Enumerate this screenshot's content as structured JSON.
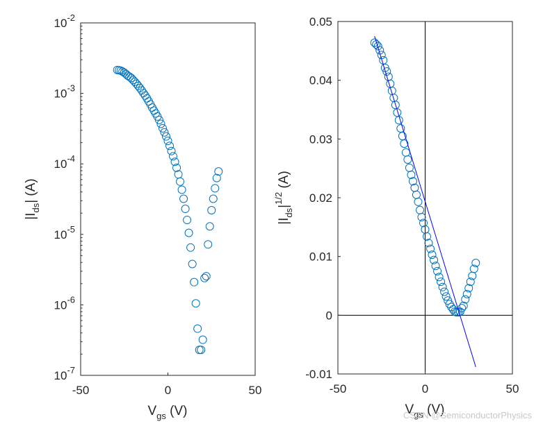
{
  "chart_data": [
    {
      "type": "scatter",
      "xlim": [
        -50,
        50
      ],
      "ylim_exp": [
        -7,
        -2
      ],
      "yscale": "log",
      "x_ticks": [
        "-50",
        "0",
        "50"
      ],
      "y_ticks": [
        {
          "base": "10",
          "exp": "-2"
        },
        {
          "base": "10",
          "exp": "-3"
        },
        {
          "base": "10",
          "exp": "-4"
        },
        {
          "base": "10",
          "exp": "-5"
        },
        {
          "base": "10",
          "exp": "-6"
        },
        {
          "base": "10",
          "exp": "-7"
        }
      ],
      "xlabel": {
        "main": "V",
        "sub": "gs",
        "rest": " (V)"
      },
      "ylabel": {
        "pre": "|I",
        "sub": "ds",
        "rest": "| (A)"
      },
      "marker_color": "#0072BD",
      "series": [
        {
          "x": [
            -29,
            -28,
            -27,
            -26,
            -25,
            -24,
            -23,
            -22,
            -21,
            -20,
            -19,
            -18,
            -17,
            -16,
            -15,
            -14,
            -13,
            -12,
            -11,
            -10,
            -9,
            -8,
            -7,
            -6,
            -5,
            -4,
            -3,
            -2,
            -1,
            0,
            1,
            2,
            3,
            4,
            5,
            6,
            7,
            8,
            9,
            10,
            11,
            12,
            13,
            14,
            15,
            16,
            17,
            18,
            19,
            20,
            21,
            22,
            23,
            24,
            25,
            26,
            27,
            28,
            29
          ],
          "y": [
            0.00215,
            0.00213,
            0.0021,
            0.00204,
            0.00197,
            0.00188,
            0.00178,
            0.00172,
            0.00165,
            0.00155,
            0.00146,
            0.00137,
            0.00128,
            0.00119,
            0.0011,
            0.00101,
            0.00093,
            0.00085,
            0.00077,
            0.0007,
            0.00063,
            0.00057,
            0.00052,
            0.00047,
            0.00042,
            0.00037,
            0.00032,
            0.00028,
            0.000245,
            0.000212,
            0.00018,
            0.000152,
            0.000128,
            0.000107,
            8.8e-05,
            7.1e-05,
            5.6e-05,
            4.3e-05,
            3.2e-05,
            2.3e-05,
            1.6e-05,
            1.05e-05,
            6.5e-06,
            3.8e-06,
            2.1e-06,
            1.05e-06,
            4.6e-07,
            2.3e-07,
            2.3e-07,
            3.2e-07,
            2.4e-06,
            2.55e-06,
            7.2e-06,
            1.3e-05,
            2.2e-05,
            3.2e-05,
            4.5e-05,
            6.3e-05,
            7.8e-05
          ]
        }
      ]
    },
    {
      "type": "scatter",
      "xlim": [
        -50,
        50
      ],
      "ylim": [
        -0.01,
        0.05
      ],
      "x_ticks": [
        "-50",
        "0",
        "50"
      ],
      "y_ticks": [
        "0.05",
        "0.04",
        "0.03",
        "0.02",
        "0.01",
        "0",
        "-0.01"
      ],
      "xlabel": {
        "main": "V",
        "sub": "gs",
        "rest": " (V)"
      },
      "ylabel": {
        "pre": "|I",
        "sub": "ds",
        "mid": "|",
        "sup": "1/2",
        "rest": " (A)"
      },
      "marker_color": "#0072BD",
      "fit_line": {
        "x": [
          -29,
          29
        ],
        "y": [
          0.0475,
          -0.0088
        ],
        "color": "#0000FF"
      },
      "reference_lines": {
        "x_zero": true,
        "y_zero": true
      },
      "series": [
        {
          "x": [
            -29,
            -28,
            -27,
            -26,
            -25,
            -24,
            -23,
            -22,
            -21,
            -20,
            -19,
            -18,
            -17,
            -16,
            -15,
            -14,
            -13,
            -12,
            -11,
            -10,
            -9,
            -8,
            -7,
            -6,
            -5,
            -4,
            -3,
            -2,
            -1,
            0,
            1,
            2,
            3,
            4,
            5,
            6,
            7,
            8,
            9,
            10,
            11,
            12,
            13,
            14,
            15,
            16,
            17,
            18,
            19,
            20,
            21,
            22,
            23,
            24,
            25,
            26,
            27,
            28,
            29
          ],
          "y": [
            0.0464,
            0.0461,
            0.0458,
            0.0451,
            0.0443,
            0.0434,
            0.0421,
            0.0415,
            0.0406,
            0.0394,
            0.0382,
            0.037,
            0.0358,
            0.0345,
            0.0332,
            0.0318,
            0.0305,
            0.0292,
            0.0277,
            0.0265,
            0.0251,
            0.0239,
            0.0228,
            0.0217,
            0.0205,
            0.0193,
            0.0179,
            0.0167,
            0.0157,
            0.0146,
            0.0134,
            0.0123,
            0.0113,
            0.0103,
            0.0094,
            0.0084,
            0.0075,
            0.0065,
            0.0057,
            0.0048,
            0.004,
            0.0032,
            0.0025,
            0.0019,
            0.0014,
            0.001,
            0.0006,
            0.0005,
            0.0005,
            0.0006,
            0.0012,
            0.0016,
            0.0027,
            0.0036,
            0.0046,
            0.0057,
            0.0067,
            0.0079,
            0.0089
          ]
        }
      ]
    }
  ],
  "watermark": "CSDN @SemiconductorPhysics"
}
